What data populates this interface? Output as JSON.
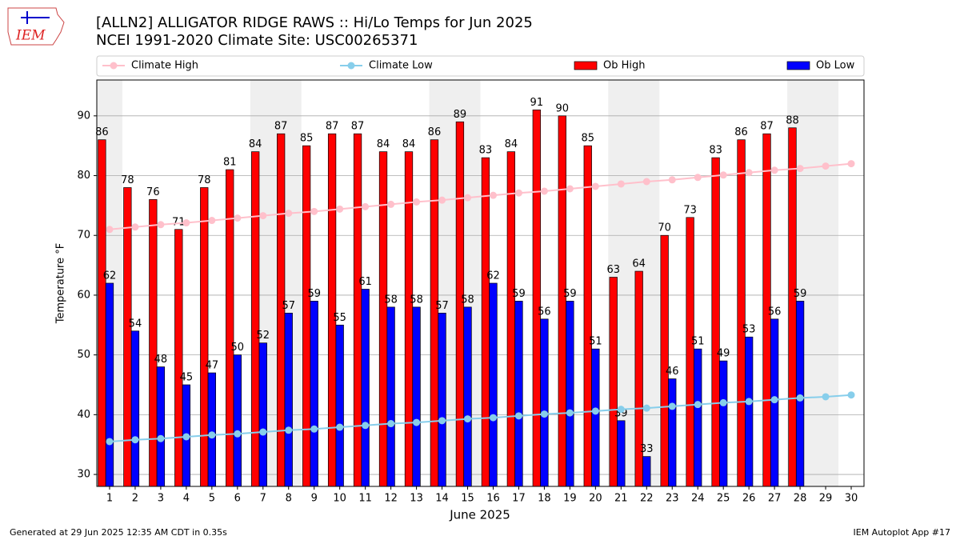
{
  "logo_text": "IEM",
  "chart_data": {
    "type": "bar",
    "title": "[ALLN2] ALLIGATOR RIDGE RAWS :: Hi/Lo Temps for Jun 2025",
    "subtitle": "NCEI 1991-2020 Climate Site: USC00265371",
    "xlabel": "June 2025",
    "ylabel": "Temperature °F",
    "x": [
      1,
      2,
      3,
      4,
      5,
      6,
      7,
      8,
      9,
      10,
      11,
      12,
      13,
      14,
      15,
      16,
      17,
      18,
      19,
      20,
      21,
      22,
      23,
      24,
      25,
      26,
      27,
      28,
      29,
      30
    ],
    "xlim": [
      0.5,
      30.5
    ],
    "xticks": [
      1,
      2,
      3,
      4,
      5,
      6,
      7,
      8,
      9,
      10,
      11,
      12,
      13,
      14,
      15,
      16,
      17,
      18,
      19,
      20,
      21,
      22,
      23,
      24,
      25,
      26,
      27,
      28,
      29,
      30
    ],
    "ylim": [
      28,
      96
    ],
    "yticks": [
      30,
      40,
      50,
      60,
      70,
      80,
      90
    ],
    "grid": true,
    "shaded_x": [
      [
        0.5,
        1.5
      ],
      [
        6.5,
        8.5
      ],
      [
        13.5,
        15.5
      ],
      [
        20.5,
        22.5
      ],
      [
        27.5,
        29.5
      ]
    ],
    "series": [
      {
        "name": "Climate High",
        "type": "line",
        "color": "#ffc0cb",
        "values": [
          71.0,
          71.4,
          71.8,
          72.1,
          72.5,
          72.9,
          73.3,
          73.7,
          74.0,
          74.4,
          74.8,
          75.2,
          75.6,
          75.9,
          76.3,
          76.7,
          77.1,
          77.4,
          77.8,
          78.2,
          78.6,
          79.0,
          79.3,
          79.7,
          80.1,
          80.5,
          80.9,
          81.2,
          81.6,
          82.0
        ]
      },
      {
        "name": "Climate Low",
        "type": "line",
        "color": "#87ceeb",
        "values": [
          35.5,
          35.8,
          36.0,
          36.3,
          36.6,
          36.8,
          37.1,
          37.4,
          37.6,
          37.9,
          38.2,
          38.5,
          38.7,
          39.0,
          39.3,
          39.5,
          39.8,
          40.1,
          40.3,
          40.6,
          40.9,
          41.1,
          41.4,
          41.7,
          42.0,
          42.2,
          42.5,
          42.8,
          43.0,
          43.3
        ]
      },
      {
        "name": "Ob High",
        "type": "bar",
        "color": "#ff0000",
        "values": [
          86,
          78,
          76,
          71,
          78,
          81,
          84,
          87,
          85,
          87,
          87,
          84,
          84,
          86,
          89,
          83,
          84,
          91,
          90,
          85,
          63,
          64,
          70,
          73,
          83,
          86,
          87,
          88,
          null,
          null
        ]
      },
      {
        "name": "Ob Low",
        "type": "bar",
        "color": "#0000ff",
        "values": [
          62,
          54,
          48,
          45,
          47,
          50,
          52,
          57,
          59,
          55,
          61,
          58,
          58,
          57,
          58,
          62,
          59,
          56,
          59,
          51,
          39,
          33,
          46,
          51,
          49,
          53,
          56,
          59,
          null,
          null
        ]
      }
    ]
  },
  "footer_left": "Generated at 29 Jun 2025 12:35 AM CDT in 0.35s",
  "footer_right": "IEM Autoplot App #17"
}
